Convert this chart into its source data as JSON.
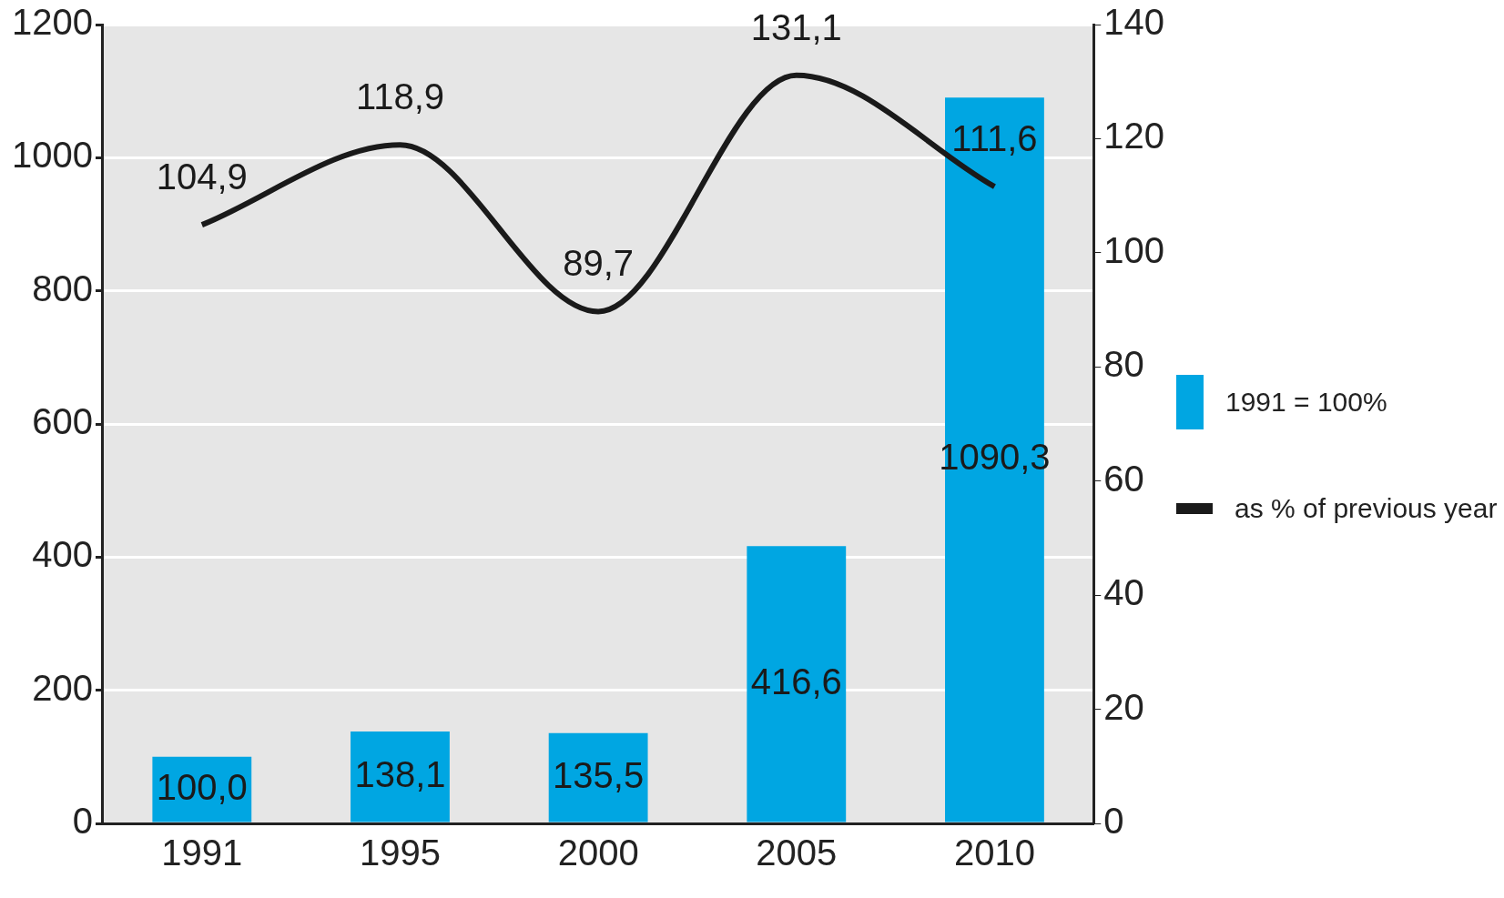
{
  "chart_data": {
    "type": "bar",
    "categories": [
      "1991",
      "1995",
      "2000",
      "2005",
      "2010"
    ],
    "series": [
      {
        "name": "1991 = 100%",
        "type": "bar",
        "color": "#00a6e2",
        "values": [
          100.0,
          138.1,
          135.5,
          416.6,
          1090.3
        ],
        "value_labels": [
          "100,0",
          "138,1",
          "135,5",
          "416,6",
          "1090,3"
        ]
      },
      {
        "name": "as % of previous year",
        "type": "line",
        "axis": "y2",
        "color": "#1a1a1a",
        "values": [
          104.9,
          118.9,
          89.7,
          131.1,
          111.6
        ],
        "value_labels": [
          "104,9",
          "118,9",
          "89,7",
          "131,1",
          "111,6"
        ]
      }
    ],
    "ylim": [
      0,
      1200
    ],
    "yticks": [
      0,
      200,
      400,
      600,
      800,
      1000,
      1200
    ],
    "y2lim": [
      0,
      140
    ],
    "y2ticks": [
      0,
      20,
      40,
      60,
      80,
      100,
      120,
      140
    ],
    "grid": "y",
    "legend": "right",
    "marker": "none",
    "line_style": "solid"
  }
}
